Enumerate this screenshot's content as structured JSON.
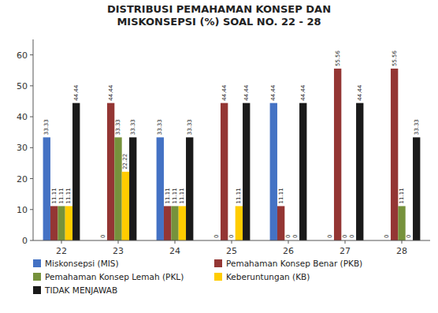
{
  "chart_data": {
    "type": "bar",
    "title": "DISTRIBUSI PEMAHAMAN KONSEP DAN\nMISKONSEPSI (%) SOAL NO. 22 - 28",
    "categories": [
      "22",
      "23",
      "24",
      "25",
      "26",
      "27",
      "28"
    ],
    "series": [
      {
        "name": "Miskonsepsi (MIS)",
        "color": "#4472C4",
        "values": [
          33.33,
          0,
          33.33,
          0,
          44.44,
          0,
          0
        ]
      },
      {
        "name": "Pemahaman Konsep Benar (PKB)",
        "color": "#943634",
        "values": [
          11.11,
          44.44,
          11.11,
          44.44,
          11.11,
          55.56,
          55.56
        ]
      },
      {
        "name": "Pemahaman Konsep Lemah (PKL)",
        "color": "#76923C",
        "values": [
          11.11,
          33.33,
          11.11,
          0,
          0,
          0,
          11.11
        ]
      },
      {
        "name": "Keberuntungan (KB)",
        "color": "#FFCC00",
        "values": [
          11.11,
          22.22,
          11.11,
          11.11,
          0,
          0,
          0
        ]
      },
      {
        "name": "TIDAK MENJAWAB",
        "color": "#1A1A1A",
        "values": [
          44.44,
          33.33,
          33.33,
          44.44,
          44.44,
          44.44,
          33.33
        ]
      }
    ],
    "ylim": [
      0,
      65
    ],
    "yticks": [
      0,
      10,
      20,
      30,
      40,
      50,
      60
    ],
    "grid": false,
    "legend": "bottom",
    "data_labels": true
  }
}
